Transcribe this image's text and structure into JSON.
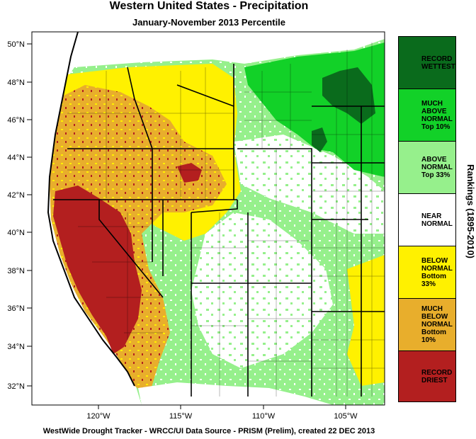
{
  "title": "Western United States - Precipitation",
  "subtitle": "January-November 2013 Percentile",
  "credit": "WestWide Drought Tracker - WRCC/UI  Data Source - PRISM (Prelim), created 22 DEC 2013",
  "legend": {
    "title": "Rankings (1895-2010)",
    "items": [
      {
        "label": "RECORD\nWETTEST",
        "color": "#0a6b1c"
      },
      {
        "label": "MUCH\nABOVE\nNORMAL\nTop 10%",
        "color": "#12d128"
      },
      {
        "label": "ABOVE\nNORMAL\nTop 33%",
        "color": "#96f08c"
      },
      {
        "label": "NEAR\nNORMAL",
        "color": "#ffffff"
      },
      {
        "label": "BELOW\nNORMAL\nBottom 33%",
        "color": "#fff100"
      },
      {
        "label": "MUCH\nBELOW\nNORMAL\nBottom 10%",
        "color": "#e8ae2c"
      },
      {
        "label": "RECORD\nDRIEST",
        "color": "#b31f1f"
      }
    ]
  },
  "axes": {
    "lat_labels": [
      "50°N",
      "48°N",
      "46°N",
      "44°N",
      "42°N",
      "40°N",
      "38°N",
      "36°N",
      "34°N",
      "32°N"
    ],
    "lon_labels": [
      "120°W",
      "115°W",
      "110°W",
      "105°W"
    ]
  }
}
